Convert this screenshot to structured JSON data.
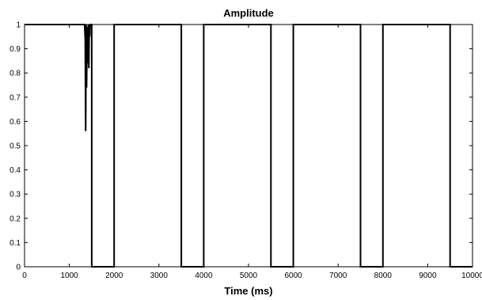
{
  "chart_data": {
    "type": "line",
    "title": "Amplitude",
    "xlabel": "Time (ms)",
    "ylabel": "",
    "xlim": [
      0,
      10000
    ],
    "ylim": [
      0,
      1
    ],
    "grid": false,
    "legend": "none",
    "x_ticks": [
      0,
      1000,
      2000,
      3000,
      4000,
      5000,
      6000,
      7000,
      8000,
      9000,
      10000
    ],
    "x_tick_labels": [
      "0",
      "1000",
      "2000",
      "3000",
      "4000",
      "5000",
      "6000",
      "7000",
      "8000",
      "9000",
      "10000"
    ],
    "y_ticks": [
      0,
      0.1,
      0.2,
      0.3,
      0.4,
      0.5,
      0.6,
      0.7,
      0.8,
      0.9,
      1
    ],
    "y_tick_labels": [
      "0",
      "0.1",
      "0.2",
      "0.3",
      "0.4",
      "0.5",
      "0.6",
      "0.7",
      "0.8",
      "0.9",
      "1"
    ],
    "line_color": "#000000",
    "series": [
      {
        "x": [
          0,
          1340,
          1355,
          1365,
          1375,
          1385,
          1395,
          1405,
          1415,
          1425,
          1435,
          1445,
          1455,
          1465,
          1475,
          1490,
          1500,
          1500,
          2000,
          2000,
          3500,
          3500,
          4000,
          4000,
          5500,
          5500,
          6000,
          6000,
          7500,
          7500,
          8000,
          8000,
          9500,
          9500,
          10000
        ],
        "y": [
          1,
          1,
          0.94,
          0.56,
          1,
          0.74,
          0.93,
          0.99,
          0.84,
          1,
          0.82,
          1,
          0.95,
          1,
          1,
          1,
          1,
          0,
          0,
          1,
          1,
          0,
          0,
          1,
          1,
          0,
          0,
          1,
          1,
          0,
          0,
          1,
          1,
          0,
          0
        ]
      }
    ]
  }
}
